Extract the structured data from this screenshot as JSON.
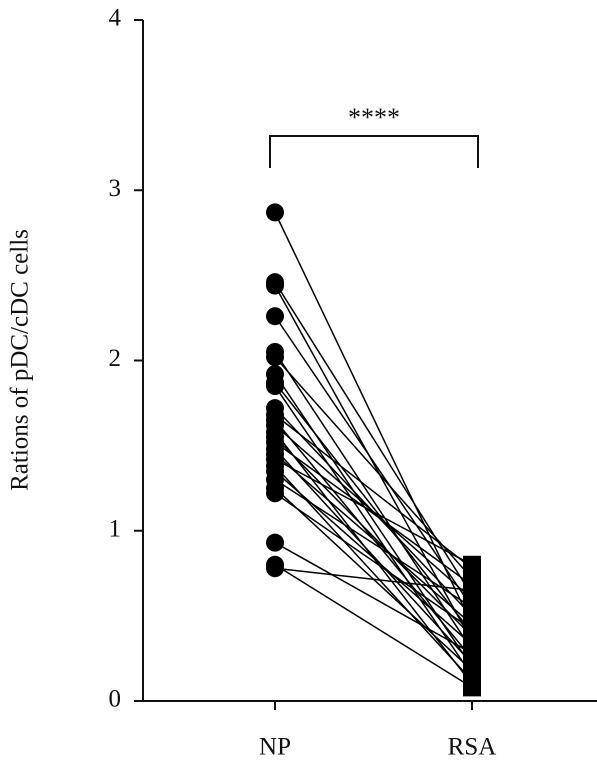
{
  "chart_data": {
    "type": "paired",
    "y_label": "Rations of pDC/cDC cells",
    "annotation": "****",
    "categories": [
      "NP",
      "RSA"
    ],
    "values": [
      [
        2.87,
        0.45
      ],
      [
        2.46,
        0.62
      ],
      [
        2.44,
        0.35
      ],
      [
        2.26,
        0.55
      ],
      [
        2.05,
        0.3
      ],
      [
        2.02,
        0.72
      ],
      [
        1.92,
        0.2
      ],
      [
        1.87,
        0.4
      ],
      [
        1.85,
        0.15
      ],
      [
        1.72,
        0.5
      ],
      [
        1.68,
        0.78
      ],
      [
        1.65,
        0.25
      ],
      [
        1.62,
        0.6
      ],
      [
        1.58,
        0.1
      ],
      [
        1.55,
        0.38
      ],
      [
        1.52,
        0.68
      ],
      [
        1.48,
        0.22
      ],
      [
        1.45,
        0.45
      ],
      [
        1.42,
        0.8
      ],
      [
        1.38,
        0.12
      ],
      [
        1.35,
        0.33
      ],
      [
        1.3,
        0.55
      ],
      [
        1.25,
        0.18
      ],
      [
        1.22,
        0.42
      ],
      [
        0.93,
        0.28
      ],
      [
        0.8,
        0.08
      ],
      [
        0.78,
        0.65
      ]
    ],
    "color": "#000000",
    "ylim": [
      0,
      4
    ],
    "yticks": [
      0,
      1,
      2,
      3,
      4
    ],
    "grid": false
  }
}
